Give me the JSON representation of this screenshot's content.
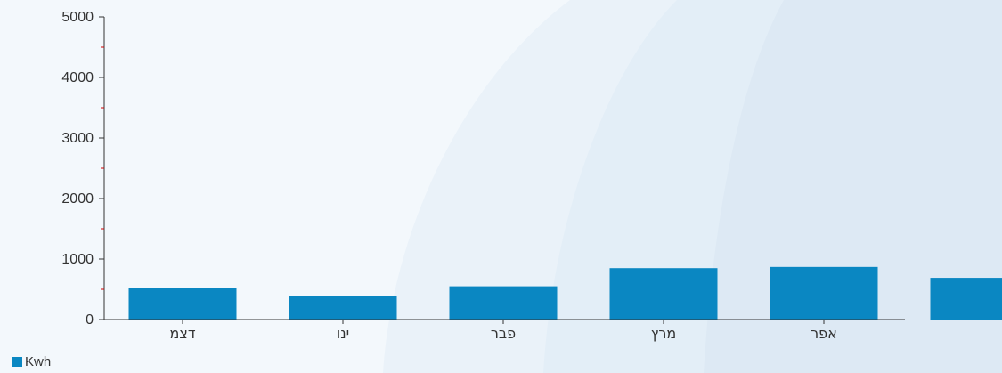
{
  "chart_data": {
    "type": "bar",
    "categories": [
      "דצמ",
      "ינו",
      "פבר",
      "מרץ",
      "אפר",
      ""
    ],
    "series": [
      {
        "name": "Kwh",
        "values": [
          520,
          390,
          550,
          850,
          870,
          690
        ]
      }
    ],
    "yticks": [
      "0",
      "1000",
      "2000",
      "3000",
      "4000",
      "5000"
    ],
    "ylim": [
      0,
      5000
    ],
    "minor_tick_step": 500,
    "grid": false,
    "legend": "bottom-left",
    "colors": {
      "bar": "#0a87c2",
      "axis": "#333333",
      "minor_tick": "#cc0000"
    }
  }
}
